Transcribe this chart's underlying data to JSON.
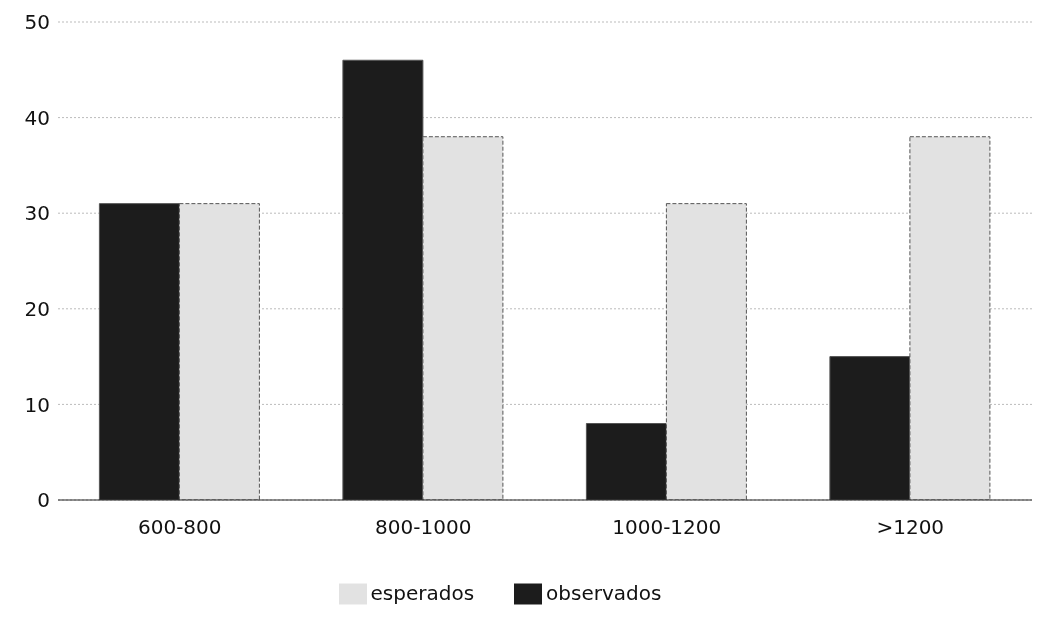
{
  "chart_data": {
    "type": "bar",
    "categories": [
      "600-800",
      "800-1000",
      "1000-1200",
      ">1200"
    ],
    "series": [
      {
        "name": "observados",
        "color": "#1c1c1c",
        "values": [
          31,
          46,
          8,
          15
        ]
      },
      {
        "name": "esperados",
        "color": "#e2e2e2",
        "values": [
          31,
          38,
          31,
          38
        ]
      }
    ],
    "ylim": [
      0,
      50
    ],
    "yticks": [
      0,
      10,
      20,
      30,
      40,
      50
    ],
    "grid": "y",
    "legend": "bottom"
  }
}
